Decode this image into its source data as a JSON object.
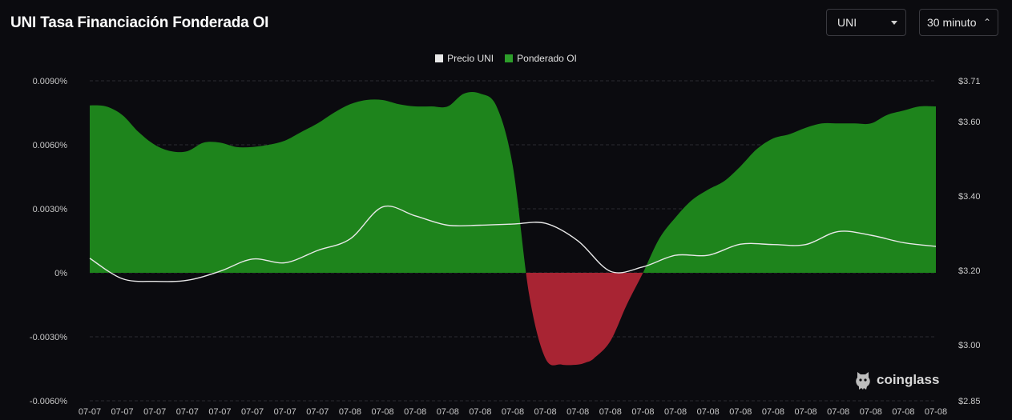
{
  "header": {
    "title": "UNI Tasa Financiación Fonderada OI"
  },
  "controls": {
    "symbol": "UNI",
    "interval": "30 minuto"
  },
  "colors": {
    "positive": "#1e841c",
    "negative": "#a82433",
    "price": "#e8e8e8",
    "grid": "#2b2b31",
    "legend_positive": "#2d9e2a"
  },
  "logo": {
    "text": "coinglass"
  },
  "chart_data": {
    "type": "area",
    "legend_position": "top-center",
    "grid": true,
    "x_tick_labels": [
      "07-07",
      "07-07",
      "07-07",
      "07-07",
      "07-07",
      "07-07",
      "07-07",
      "07-07",
      "07-08",
      "07-08",
      "07-08",
      "07-08",
      "07-08",
      "07-08",
      "07-08",
      "07-08",
      "07-08",
      "07-08",
      "07-08",
      "07-08",
      "07-08",
      "07-08",
      "07-08",
      "07-08",
      "07-08",
      "07-08",
      "07-08"
    ],
    "y_left": {
      "ticks": [
        -0.006,
        -0.003,
        0,
        0.003,
        0.006,
        0.009
      ],
      "tick_labels": [
        "-0.0060%",
        "-0.0030%",
        "0%",
        "0.0030%",
        "0.0060%",
        "0.0090%"
      ],
      "range": [
        -0.006,
        0.009
      ]
    },
    "y_right": {
      "ticks": [
        2.85,
        3.0,
        3.2,
        3.4,
        3.6,
        3.71
      ],
      "tick_labels": [
        "$2.85",
        "$3.00",
        "$3.20",
        "$3.40",
        "$3.60",
        "$3.71"
      ],
      "range": [
        2.85,
        3.71
      ]
    },
    "series": [
      {
        "name": "Precio UNI",
        "axis": "right",
        "x": [
          0,
          1,
          2,
          3,
          4,
          5,
          6,
          7,
          8,
          9,
          10,
          11,
          12,
          13,
          14,
          15,
          16,
          17,
          18,
          19,
          20,
          21,
          22,
          23,
          24,
          25,
          26
        ],
        "values": [
          3.233,
          3.178,
          3.171,
          3.174,
          3.198,
          3.231,
          3.221,
          3.254,
          3.285,
          3.371,
          3.347,
          3.322,
          3.322,
          3.325,
          3.327,
          3.28,
          3.198,
          3.21,
          3.241,
          3.241,
          3.271,
          3.27,
          3.27,
          3.305,
          3.295,
          3.275,
          3.265
        ]
      },
      {
        "name": "Ponderado OI",
        "axis": "left",
        "x": [
          0,
          0.5,
          1,
          1.5,
          2,
          2.5,
          3,
          3.5,
          4,
          4.5,
          5,
          5.5,
          6,
          6.5,
          7,
          7.5,
          8,
          8.5,
          9,
          9.5,
          10,
          10.5,
          11,
          11.5,
          12,
          12.5,
          13,
          13.5,
          14,
          14.5,
          15,
          15.25,
          15.5,
          16,
          16.5,
          17,
          17.5,
          18,
          18.5,
          19,
          19.5,
          20,
          20.5,
          21,
          21.5,
          22,
          22.5,
          23,
          23.5,
          24,
          24.5,
          25,
          25.5,
          26
        ],
        "values": [
          0.00785,
          0.0078,
          0.0074,
          0.0066,
          0.006,
          0.0057,
          0.0057,
          0.0061,
          0.0061,
          0.0059,
          0.0059,
          0.006,
          0.0062,
          0.0066,
          0.007,
          0.0075,
          0.0079,
          0.0081,
          0.0081,
          0.0079,
          0.0078,
          0.0078,
          0.0078,
          0.0084,
          0.0084,
          0.0078,
          0.005,
          -0.001,
          -0.004,
          -0.0043,
          -0.0043,
          -0.0042,
          -0.004,
          -0.0032,
          -0.0015,
          0.0,
          0.0016,
          0.0026,
          0.0034,
          0.0039,
          0.0043,
          0.005,
          0.0058,
          0.0063,
          0.0065,
          0.0068,
          0.007,
          0.007,
          0.007,
          0.007,
          0.0074,
          0.0076,
          0.0078,
          0.0078
        ]
      }
    ]
  }
}
